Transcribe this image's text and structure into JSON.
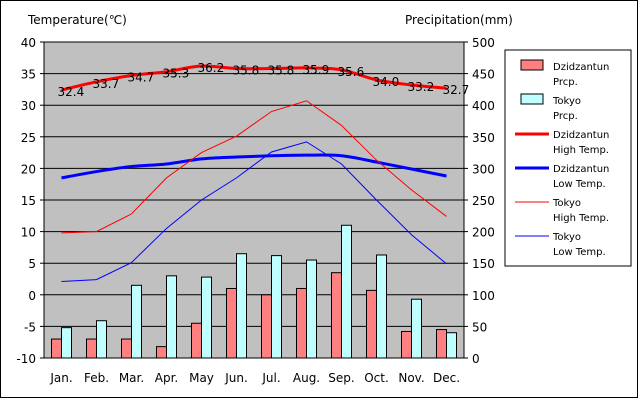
{
  "chart_data": {
    "type": "bar+line",
    "left_axis_title": "Temperature(℃)",
    "right_axis_title": "Precipitation(mm)",
    "categories": [
      "Jan.",
      "Feb.",
      "Mar.",
      "Apr.",
      "May",
      "Jun.",
      "Jul.",
      "Aug.",
      "Sep.",
      "Oct.",
      "Nov.",
      "Dec."
    ],
    "temp_axis": {
      "min": -10,
      "max": 40,
      "ticks": [
        "40",
        "35",
        "30",
        "25",
        "20",
        "15",
        "10",
        "5",
        "0",
        "-5",
        "-10"
      ]
    },
    "prcp_axis": {
      "min": 0,
      "max": 500,
      "ticks": [
        "500",
        "450",
        "400",
        "350",
        "300",
        "250",
        "200",
        "150",
        "100",
        "50",
        "0"
      ]
    },
    "grid": true,
    "plot_background": "#c0c0c0",
    "legend_placement": "right",
    "series": [
      {
        "name": "Dzidzantun Prcp.",
        "legend_lines": [
          "Dzidzantun",
          "Prcp."
        ],
        "kind": "bar",
        "axis": "prcp",
        "color": "#ff8080",
        "values": [
          30,
          30,
          30,
          18,
          55,
          110,
          100,
          110,
          135,
          107,
          42,
          45
        ]
      },
      {
        "name": "Tokyo Prcp.",
        "legend_lines": [
          "Tokyo",
          "Prcp."
        ],
        "kind": "bar",
        "axis": "prcp",
        "color": "#c0ffff",
        "values": [
          48,
          59,
          115,
          130,
          128,
          165,
          162,
          155,
          210,
          163,
          93,
          40
        ]
      },
      {
        "name": "Dzidzantun High Temp.",
        "legend_lines": [
          "Dzidzantun",
          "High Temp."
        ],
        "kind": "line",
        "axis": "temp",
        "color": "#ff0000",
        "width": 3,
        "values": [
          32.4,
          33.7,
          34.7,
          35.3,
          36.2,
          35.8,
          35.8,
          35.9,
          35.6,
          34.0,
          33.2,
          32.7
        ],
        "labels": [
          "32.4",
          "33.7",
          "34.7",
          "35.3",
          "36.2",
          "35.8",
          "35.8",
          "35.9",
          "35.6",
          "34.0",
          "33.2",
          "32.7"
        ]
      },
      {
        "name": "Dzidzantun Low Temp.",
        "legend_lines": [
          "Dzidzantun",
          "Low Temp."
        ],
        "kind": "line",
        "axis": "temp",
        "color": "#0000ff",
        "width": 3,
        "values": [
          18.5,
          19.5,
          20.3,
          20.7,
          21.5,
          21.8,
          22.0,
          22.1,
          22.0,
          21.0,
          19.9,
          18.8
        ]
      },
      {
        "name": "Tokyo High Temp.",
        "legend_lines": [
          "Tokyo",
          "High Temp."
        ],
        "kind": "line",
        "axis": "temp",
        "color": "#ff0000",
        "width": 1,
        "values": [
          9.8,
          10.0,
          12.8,
          18.5,
          22.5,
          25.1,
          29.0,
          30.7,
          26.8,
          21.3,
          16.6,
          12.4
        ]
      },
      {
        "name": "Tokyo Low Temp.",
        "legend_lines": [
          "Tokyo",
          "Low Temp."
        ],
        "kind": "line",
        "axis": "temp",
        "color": "#0000ff",
        "width": 1,
        "values": [
          2.1,
          2.4,
          5.1,
          10.5,
          15.0,
          18.5,
          22.6,
          24.2,
          20.7,
          15.0,
          9.5,
          4.9
        ]
      }
    ]
  }
}
